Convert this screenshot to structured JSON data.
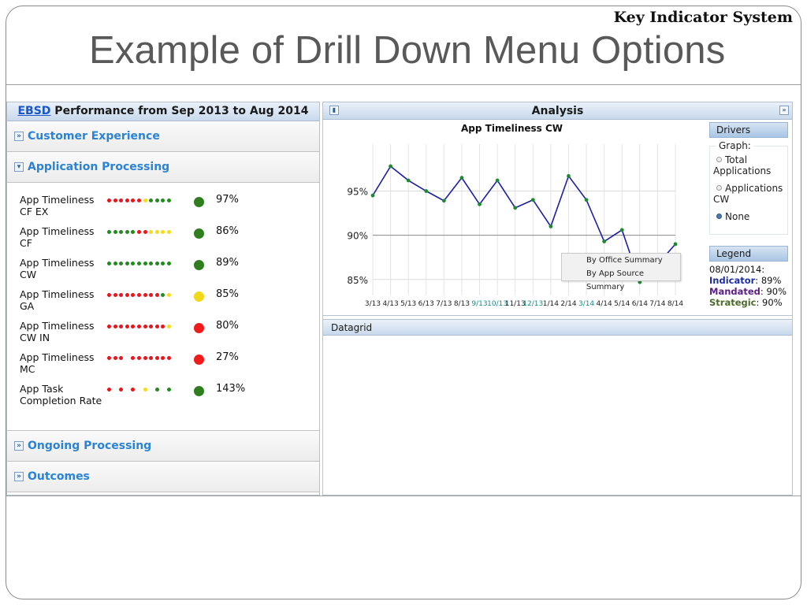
{
  "slide": {
    "corner_label": "Key Indicator System",
    "title": "Example of Drill Down Menu Options"
  },
  "left_panel": {
    "header_link": "EBSD",
    "header_rest": " Performance from Sep 2013 to Aug 2014",
    "accordions": [
      {
        "label": "Customer Experience",
        "expanded": false
      },
      {
        "label": "Application Processing",
        "expanded": true
      },
      {
        "label": "Ongoing Processing",
        "expanded": false
      },
      {
        "label": "Outcomes",
        "expanded": false
      }
    ],
    "indicators": [
      {
        "name": "App Timeliness CF EX",
        "value": "97%",
        "status": "green",
        "dots": [
          "red",
          "red",
          "red",
          "red",
          "red",
          "red",
          "yellow",
          "green",
          "green",
          "green",
          "green"
        ]
      },
      {
        "name": "App Timeliness CF",
        "value": "86%",
        "status": "green",
        "dots": [
          "green",
          "green",
          "green",
          "green",
          "green",
          "red",
          "red",
          "yellow",
          "yellow",
          "yellow",
          "yellow"
        ]
      },
      {
        "name": "App Timeliness CW",
        "value": "89%",
        "status": "green",
        "dots": [
          "green",
          "green",
          "green",
          "green",
          "green",
          "green",
          "green",
          "green",
          "green",
          "green",
          "green"
        ]
      },
      {
        "name": "App Timeliness GA",
        "value": "85%",
        "status": "yellow",
        "dots": [
          "red",
          "red",
          "red",
          "red",
          "red",
          "red",
          "red",
          "red",
          "red",
          "green",
          "yellow"
        ]
      },
      {
        "name": "App Timeliness CW IN",
        "value": "80%",
        "status": "red",
        "dots": [
          "red",
          "red",
          "red",
          "red",
          "red",
          "red",
          "red",
          "red",
          "red",
          "red",
          "yellow"
        ]
      },
      {
        "name": "App Timeliness MC",
        "value": "27%",
        "status": "red",
        "dots": [
          "red",
          "red",
          "red",
          "",
          "red",
          "red",
          "red",
          "red",
          "red",
          "red",
          "red"
        ]
      },
      {
        "name": "App Task Completion Rate",
        "value": "143%",
        "status": "green",
        "dots": [
          "red",
          "",
          "red",
          "",
          "red",
          "",
          "yellow",
          "",
          "green",
          "",
          "green"
        ]
      }
    ]
  },
  "analysis": {
    "title": "Analysis",
    "collapse_icon": "pin-icon",
    "expand_icon": "double-chevron-right-icon",
    "context_menu": [
      "By Office Summary",
      "By App Source Summary"
    ],
    "drivers": {
      "header": "Drivers",
      "graph_label": "Graph:",
      "options": [
        {
          "label": "Total Applications",
          "selected": false
        },
        {
          "label": "Applications CW",
          "selected": false
        },
        {
          "label": "None",
          "selected": true
        }
      ]
    },
    "legend": {
      "header": "Legend",
      "date": "08/01/2014:",
      "indicator_label": "Indicator",
      "indicator_value": ": 89%",
      "mandated_label": "Mandated",
      "mandated_value": ": 90%",
      "strategic_label": "Strategic",
      "strategic_value": ": 90%"
    },
    "datagrid_title": "Datagrid"
  },
  "chart_data": {
    "type": "line",
    "title": "App Timeliness CW",
    "x": [
      "3/13",
      "4/13",
      "5/13",
      "6/13",
      "7/13",
      "8/13",
      "9/13",
      "10/13",
      "11/13",
      "12/13",
      "1/14",
      "2/14",
      "3/14",
      "4/14",
      "5/14",
      "6/14",
      "7/14",
      "8/14"
    ],
    "x_highlighted": [
      "9/13",
      "10/13",
      "12/13",
      "3/14"
    ],
    "values": [
      94.5,
      97.8,
      96.2,
      95.0,
      93.9,
      96.5,
      93.5,
      96.2,
      93.1,
      94.0,
      91.0,
      96.7,
      94.0,
      89.3,
      90.6,
      84.7,
      86.7,
      89.0
    ],
    "yticks": [
      "85%",
      "90%",
      "95%"
    ],
    "ylim": [
      83.2,
      100.3
    ],
    "reference_line": 90,
    "series_color": "#1b1fa5",
    "point_color": "#1d8a2e"
  },
  "colors": {
    "red": "#e8161a",
    "green": "#238a1f",
    "yellow": "#f5dc1a",
    "status_green": "#2e7d1e",
    "status_red": "#f01a1a",
    "status_yellow": "#f2d818"
  }
}
